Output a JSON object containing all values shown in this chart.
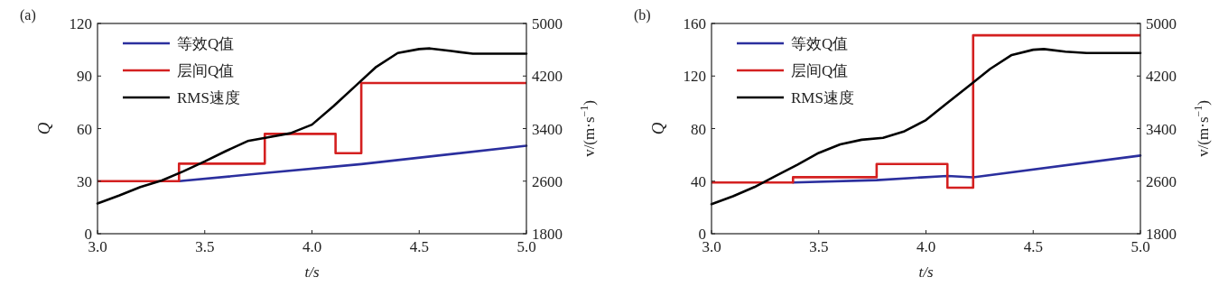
{
  "chart_data": [
    {
      "type": "line",
      "annotations": [
        "(a)"
      ],
      "xlabel": "t/s",
      "ylabel": "Q",
      "y2label": "v/(m·s$^{−1}$)",
      "legend": "top left",
      "xlim": [
        3.0,
        5.0
      ],
      "xticks": [
        {
          "value": 3.0,
          "label": "3.0"
        },
        {
          "value": 3.5,
          "label": "3.5"
        },
        {
          "value": 4.0,
          "label": "4.0"
        },
        {
          "value": 4.5,
          "label": "4.5"
        },
        {
          "value": 5.0,
          "label": "5.0"
        }
      ],
      "ylim": [
        0,
        120
      ],
      "yticks": [
        0,
        30,
        60,
        90,
        120
      ],
      "y2lim": [
        1800,
        5000
      ],
      "y2ticks": [
        1800,
        2600,
        3400,
        4200,
        5000
      ],
      "series": [
        {
          "name": "等效Q值",
          "color": "#2b2f9e",
          "x": [
            3.38,
            3.78,
            4.23,
            5.0
          ],
          "values": [
            30,
            34.6,
            39.7,
            50.2
          ]
        },
        {
          "name": "层间Q值",
          "color": "#d42020",
          "type": "step",
          "x": [
            3.0,
            3.38,
            3.78,
            4.11,
            4.23,
            5.0
          ],
          "values": [
            30,
            40,
            57,
            46,
            86,
            86
          ]
        },
        {
          "name": "RMS速度",
          "color": "#000000",
          "type": "line",
          "axis": "y2",
          "x": [
            3.0,
            3.1,
            3.2,
            3.3,
            3.4,
            3.5,
            3.6,
            3.7,
            3.8,
            3.9,
            4.0,
            4.1,
            4.2,
            4.3,
            4.4,
            4.5,
            4.55,
            4.65,
            4.75,
            5.0
          ],
          "values": [
            2260,
            2380,
            2510,
            2610,
            2750,
            2900,
            3060,
            3210,
            3270,
            3330,
            3460,
            3740,
            4040,
            4340,
            4550,
            4610,
            4620,
            4580,
            4540,
            4540
          ]
        }
      ]
    },
    {
      "type": "line",
      "annotations": [
        "(b)"
      ],
      "xlabel": "t/s",
      "ylabel": "Q",
      "y2label": "v/(m·s$^{−1}$)",
      "legend": "top left",
      "xlim": [
        3.0,
        5.0
      ],
      "xticks": [
        {
          "value": 3.0,
          "label": "3.0"
        },
        {
          "value": 3.5,
          "label": "3.5"
        },
        {
          "value": 4.0,
          "label": "4.0"
        },
        {
          "value": 4.5,
          "label": "4.5"
        },
        {
          "value": 5.0,
          "label": "5.0"
        }
      ],
      "ylim": [
        0,
        160
      ],
      "yticks": [
        0,
        40,
        80,
        120,
        160
      ],
      "y2lim": [
        1800,
        5000
      ],
      "y2ticks": [
        1800,
        2600,
        3400,
        4200,
        5000
      ],
      "series": [
        {
          "name": "等效Q值",
          "color": "#2b2f9e",
          "x": [
            3.38,
            3.77,
            4.1,
            4.22,
            5.0
          ],
          "values": [
            39,
            40.8,
            44,
            42.9,
            59.5
          ]
        },
        {
          "name": "层间Q值",
          "color": "#d42020",
          "type": "step",
          "x": [
            3.0,
            3.38,
            3.77,
            4.1,
            4.22,
            5.0
          ],
          "values": [
            39,
            43,
            53,
            35,
            151,
            151
          ]
        },
        {
          "name": "RMS速度",
          "color": "#000000",
          "type": "line",
          "axis": "y2",
          "x": [
            3.0,
            3.1,
            3.2,
            3.3,
            3.4,
            3.5,
            3.6,
            3.7,
            3.8,
            3.9,
            4.0,
            4.1,
            4.2,
            4.3,
            4.4,
            4.5,
            4.55,
            4.65,
            4.75,
            5.0
          ],
          "values": [
            2250,
            2370,
            2510,
            2680,
            2850,
            3030,
            3160,
            3230,
            3260,
            3360,
            3530,
            3790,
            4050,
            4310,
            4520,
            4600,
            4610,
            4570,
            4550,
            4550
          ]
        }
      ]
    }
  ]
}
